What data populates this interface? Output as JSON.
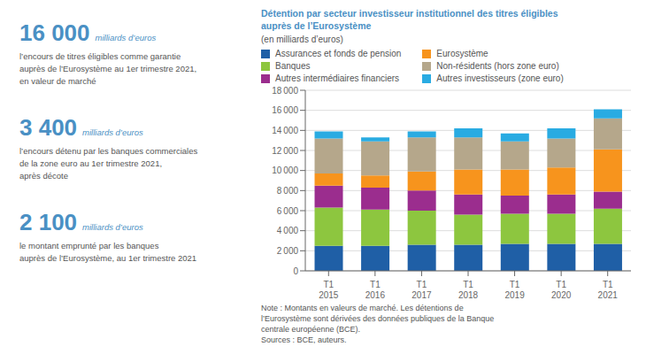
{
  "chart_data": {
    "type": "bar",
    "stacked": true,
    "grid": true,
    "title": "Détention par secteur investisseur institutionnel des titres éligibles\nauprès de l’Eurosystème",
    "subtitle": "(en milliards d’euros)",
    "categories": [
      "T1\n2015",
      "T1\n2016",
      "T1\n2017",
      "T1\n2018",
      "T1\n2019",
      "T1\n2020",
      "T1\n2021"
    ],
    "series": [
      {
        "name": "Assurances et fonds de pension",
        "color": "#1F5FA6",
        "values": [
          2500,
          2500,
          2600,
          2600,
          2700,
          2700,
          2700
        ]
      },
      {
        "name": "Banques",
        "color": "#8DC63F",
        "values": [
          3800,
          3600,
          3400,
          3000,
          3000,
          3000,
          3500
        ]
      },
      {
        "name": "Autres intermédiaires financiers",
        "color": "#9B2D8E",
        "values": [
          2200,
          2200,
          2000,
          2000,
          1800,
          1900,
          1700
        ]
      },
      {
        "name": "Eurosystème",
        "color": "#F7941D",
        "values": [
          1200,
          1200,
          1900,
          2500,
          2600,
          2700,
          4200
        ]
      },
      {
        "name": "Non-résidents (hors zone euro)",
        "color": "#B5A78B",
        "values": [
          3500,
          3400,
          3400,
          3200,
          2800,
          2900,
          3100
        ]
      },
      {
        "name": "Autres investisseurs (zone euro)",
        "color": "#29ABE2",
        "values": [
          700,
          400,
          600,
          900,
          800,
          1000,
          900
        ]
      }
    ],
    "ylim": [
      0,
      18000
    ],
    "yticks": [
      0,
      {
        "value": 2000,
        "label": "2 000"
      },
      {
        "value": 4000,
        "label": "4 000"
      },
      {
        "value": 6000,
        "label": "6 000"
      },
      {
        "value": 8000,
        "label": "8 000"
      },
      {
        "value": 10000,
        "label": "10 000"
      },
      {
        "value": 12000,
        "label": "12 000"
      },
      {
        "value": 14000,
        "label": "14 000"
      },
      {
        "value": 16000,
        "label": "16 000"
      },
      {
        "value": 18000,
        "label": "18 000"
      }
    ],
    "annotations": [
      [
        "16 000",
        "milliards d’euros",
        "l’encours de titres éligibles comme garantie\nauprès de l’Eurosystème au 1er trimestre 2021,\nen valeur de marché"
      ],
      [
        "3 400",
        "milliards d’euros",
        "l’encours détenu par les banques commerciales\nde la zone euro au 1er trimestre 2021,\naprès décote"
      ],
      [
        "2 100",
        "milliards d’euros",
        "le montant emprunté par les banques\nauprès de l’Eurosystème, au 1er trimestre 2021"
      ]
    ],
    "note": "Note : Montants en valeurs de marché. Les détentions de\nl’Eurosystème sont dérivées des données publiques de la Banque\ncentrale européenne (BCE).\nSources : BCE, auteurs."
  }
}
